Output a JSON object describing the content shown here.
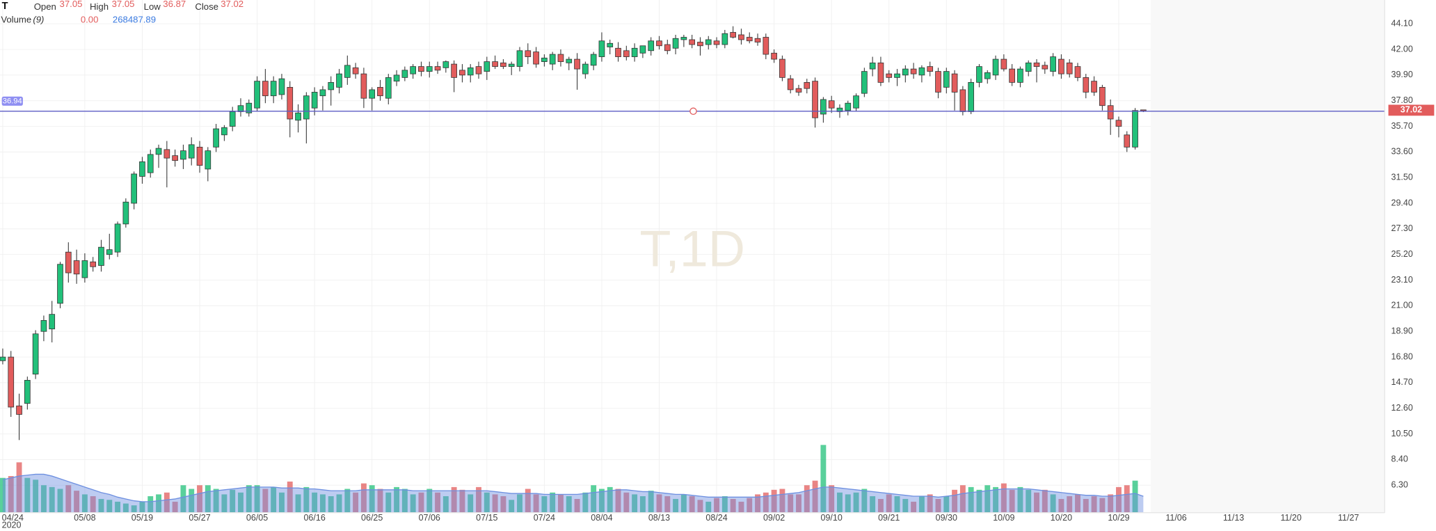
{
  "chart_data": {
    "type": "candlestick",
    "header": {
      "symbol": "T",
      "open": "Open",
      "high": "High",
      "low": "Low",
      "close": "Close",
      "volume": "Volume",
      "volume_period": "(9)",
      "volume_value": "0.00"
    },
    "watermark": "T,1D",
    "year_label": "2020",
    "categories": [
      "04/24",
      null,
      null,
      null,
      null,
      null,
      null,
      null,
      null,
      null,
      "05/08",
      null,
      null,
      null,
      null,
      null,
      null,
      "05/19",
      null,
      null,
      null,
      null,
      null,
      null,
      "05/27",
      null,
      null,
      null,
      null,
      null,
      null,
      "06/05",
      null,
      null,
      null,
      null,
      null,
      null,
      "06/16",
      null,
      null,
      null,
      null,
      null,
      null,
      "06/25",
      null,
      null,
      null,
      null,
      null,
      null,
      "07/06",
      null,
      null,
      null,
      null,
      null,
      null,
      "07/15",
      null,
      null,
      null,
      null,
      null,
      null,
      "07/24",
      null,
      null,
      null,
      null,
      null,
      null,
      "08/04",
      null,
      null,
      null,
      null,
      null,
      null,
      "08/13",
      null,
      null,
      null,
      null,
      null,
      null,
      "08/24",
      null,
      null,
      null,
      null,
      null,
      null,
      "09/02",
      null,
      null,
      null,
      null,
      null,
      null,
      "09/10",
      null,
      null,
      null,
      null,
      null,
      null,
      "09/21",
      null,
      null,
      null,
      null,
      null,
      null,
      "09/30",
      null,
      null,
      null,
      null,
      null,
      null,
      "10/09",
      null,
      null,
      null,
      null,
      null,
      null,
      "10/20",
      null,
      null,
      null,
      null,
      null,
      null,
      "10/29",
      null,
      null,
      null,
      null,
      null,
      null,
      "11/06",
      null,
      null,
      null,
      null,
      null,
      null,
      "11/13",
      null,
      null,
      null,
      null,
      null,
      null,
      "11/20",
      null,
      null,
      null,
      null,
      null,
      null,
      "11/27",
      null,
      null,
      null
    ],
    "open": [
      16.5,
      16.8,
      12.8,
      13.0,
      15.4,
      18.9,
      19.1,
      21.2,
      25.4,
      24.7,
      23.3,
      24.6,
      24.3,
      25.2,
      25.4,
      27.7,
      29.4,
      31.6,
      31.9,
      33.4,
      33.8,
      33.3,
      33.0,
      33.1,
      34.0,
      32.2,
      34.0,
      35.0,
      35.7,
      36.9,
      36.8,
      37.2,
      39.4,
      38.2,
      38.3,
      38.9,
      36.2,
      36.3,
      37.2,
      38.2,
      38.7,
      38.9,
      39.7,
      40.5,
      40.0,
      38.0,
      38.9,
      38.0,
      39.4,
      39.7,
      40.0,
      40.6,
      40.2,
      40.6,
      40.5,
      40.8,
      40.3,
      39.9,
      40.6,
      40.2,
      41.0,
      40.9,
      40.6,
      40.6,
      41.9,
      41.8,
      41.0,
      40.8,
      41.6,
      40.9,
      41.2,
      40.0,
      40.7,
      41.4,
      42.2,
      42.1,
      41.9,
      41.4,
      41.7,
      41.9,
      42.7,
      42.4,
      42.1,
      42.8,
      42.8,
      42.6,
      42.4,
      42.7,
      42.4,
      43.4,
      43.2,
      43.0,
      42.9,
      43.0,
      41.7,
      41.2,
      39.6,
      38.8,
      39.3,
      39.4,
      36.7,
      37.8,
      36.9,
      37.0,
      37.2,
      38.4,
      40.4,
      40.9,
      40.0,
      39.7,
      39.9,
      40.4,
      39.9,
      40.6,
      40.2,
      38.9,
      40.0,
      38.7,
      36.9,
      39.3,
      39.6,
      39.9,
      41.2,
      40.4,
      39.3,
      40.2,
      40.9,
      40.7,
      40.2,
      41.2,
      40.9,
      40.6,
      39.7,
      39.4,
      38.9,
      37.4,
      36.2,
      35.0,
      34.0,
      37.05,
      null,
      null,
      null,
      null,
      null,
      null,
      null,
      null,
      null,
      null,
      null,
      null,
      null,
      null,
      null,
      null,
      null,
      null,
      null,
      null,
      null,
      null,
      null,
      null,
      null,
      null,
      null,
      null
    ],
    "high": [
      17.5,
      17.3,
      13.8,
      15.2,
      19.0,
      20.2,
      21.4,
      24.6,
      26.2,
      25.6,
      25.3,
      25.0,
      26.4,
      26.9,
      27.9,
      29.8,
      32.0,
      33.2,
      33.8,
      34.2,
      34.5,
      33.8,
      34.2,
      34.8,
      34.5,
      34.0,
      35.9,
      35.8,
      37.3,
      38.0,
      37.9,
      39.8,
      40.4,
      39.8,
      40.0,
      39.4,
      37.5,
      38.5,
      38.9,
      39.0,
      39.8,
      40.4,
      41.5,
      40.9,
      40.5,
      38.9,
      39.5,
      40.0,
      40.3,
      40.6,
      40.8,
      41.0,
      41.0,
      41.0,
      41.1,
      41.1,
      40.8,
      40.8,
      41.0,
      41.4,
      41.5,
      41.2,
      41.0,
      42.2,
      42.5,
      42.2,
      41.6,
      41.8,
      42.0,
      41.4,
      41.7,
      41.0,
      41.8,
      43.4,
      42.8,
      42.6,
      42.3,
      42.5,
      42.3,
      43.0,
      43.1,
      42.8,
      43.2,
      43.2,
      43.2,
      43.0,
      43.1,
      43.0,
      43.6,
      43.9,
      43.7,
      43.4,
      43.3,
      43.3,
      42.0,
      41.5,
      39.9,
      39.1,
      39.6,
      39.7,
      38.1,
      38.2,
      37.5,
      37.8,
      38.4,
      40.5,
      41.4,
      41.4,
      40.3,
      40.4,
      40.7,
      40.9,
      40.7,
      41.0,
      40.5,
      40.5,
      40.3,
      39.0,
      39.6,
      40.8,
      40.3,
      41.5,
      41.6,
      40.8,
      40.6,
      41.1,
      41.2,
      41.0,
      41.7,
      41.6,
      41.2,
      40.9,
      40.0,
      39.8,
      39.1,
      37.9,
      36.5,
      35.3,
      37.2,
      37.05,
      null,
      null,
      null,
      null,
      null,
      null,
      null,
      null,
      null,
      null,
      null,
      null,
      null,
      null,
      null,
      null,
      null,
      null,
      null,
      null,
      null,
      null,
      null,
      null,
      null,
      null,
      null,
      null
    ],
    "low": [
      16.2,
      11.9,
      10.0,
      12.5,
      15.0,
      18.1,
      18.0,
      20.8,
      22.9,
      22.8,
      22.9,
      23.8,
      23.8,
      24.8,
      25.0,
      27.4,
      28.9,
      31.0,
      31.5,
      32.3,
      30.7,
      32.4,
      32.2,
      32.5,
      31.9,
      31.2,
      33.6,
      34.5,
      35.3,
      36.5,
      36.5,
      36.9,
      37.6,
      37.6,
      37.9,
      34.8,
      35.2,
      34.3,
      36.6,
      37.0,
      37.4,
      38.4,
      39.1,
      39.6,
      37.2,
      37.0,
      37.8,
      37.5,
      39.0,
      39.4,
      39.6,
      39.8,
      39.7,
      40.0,
      40.1,
      38.5,
      39.3,
      39.3,
      39.6,
      39.5,
      40.4,
      40.4,
      39.9,
      40.2,
      40.8,
      40.5,
      40.6,
      40.3,
      40.6,
      40.3,
      38.7,
      39.6,
      40.3,
      41.0,
      41.6,
      41.0,
      41.1,
      41.0,
      41.3,
      41.5,
      42.0,
      41.6,
      41.6,
      42.2,
      42.1,
      41.5,
      42.0,
      42.1,
      42.1,
      42.9,
      42.4,
      42.5,
      42.3,
      41.2,
      40.9,
      39.4,
      38.4,
      38.2,
      38.4,
      35.6,
      36.0,
      36.8,
      36.4,
      36.6,
      36.9,
      38.1,
      39.8,
      39.0,
      39.3,
      39.0,
      39.3,
      39.6,
      39.3,
      39.8,
      38.0,
      38.4,
      37.0,
      36.6,
      36.7,
      38.9,
      39.2,
      39.5,
      40.2,
      39.0,
      38.9,
      39.8,
      39.3,
      40.0,
      39.8,
      39.6,
      39.7,
      39.4,
      38.0,
      38.2,
      37.0,
      35.0,
      34.8,
      33.6,
      33.8,
      36.87,
      null,
      null,
      null,
      null,
      null,
      null,
      null,
      null,
      null,
      null,
      null,
      null,
      null,
      null,
      null,
      null,
      null,
      null,
      null,
      null,
      null,
      null,
      null,
      null,
      null,
      null,
      null,
      null
    ],
    "close": [
      16.8,
      12.7,
      12.1,
      14.9,
      18.7,
      19.8,
      20.3,
      24.4,
      23.7,
      23.6,
      24.7,
      24.2,
      25.8,
      25.6,
      27.7,
      29.5,
      31.8,
      32.8,
      33.4,
      33.9,
      33.1,
      32.9,
      33.7,
      34.2,
      32.5,
      33.7,
      35.5,
      35.6,
      36.9,
      37.4,
      37.6,
      39.4,
      38.2,
      39.4,
      39.6,
      36.3,
      36.8,
      38.2,
      38.5,
      38.7,
      39.3,
      40.0,
      40.7,
      40.0,
      38.0,
      38.7,
      38.2,
      39.7,
      39.9,
      40.3,
      40.6,
      40.2,
      40.6,
      40.3,
      41.0,
      39.7,
      39.9,
      40.5,
      40.0,
      41.0,
      40.6,
      40.6,
      40.8,
      41.9,
      41.4,
      40.8,
      41.3,
      41.6,
      41.0,
      41.2,
      40.4,
      40.8,
      41.6,
      42.7,
      42.5,
      41.4,
      41.4,
      42.1,
      42.3,
      42.7,
      42.3,
      41.9,
      42.9,
      43.0,
      42.4,
      42.3,
      42.8,
      42.4,
      43.3,
      43.0,
      42.8,
      42.7,
      42.6,
      41.6,
      41.2,
      39.7,
      38.7,
      38.5,
      38.8,
      36.4,
      37.9,
      37.2,
      37.2,
      37.6,
      38.2,
      40.2,
      40.9,
      39.3,
      39.7,
      40.0,
      40.4,
      40.0,
      40.5,
      40.2,
      38.5,
      40.2,
      38.5,
      36.9,
      39.3,
      40.6,
      40.1,
      41.2,
      40.4,
      39.3,
      40.4,
      40.9,
      40.6,
      40.4,
      41.4,
      40.0,
      40.0,
      39.7,
      38.5,
      38.5,
      37.4,
      36.3,
      35.7,
      34.0,
      37.0,
      37.02,
      null,
      null,
      null,
      null,
      null,
      null,
      null,
      null,
      null,
      null,
      null,
      null,
      null,
      null,
      null,
      null,
      null,
      null,
      null,
      null,
      null,
      null,
      null,
      null,
      null,
      null,
      null,
      null
    ],
    "volume": [
      570000,
      600000,
      825000,
      570000,
      540000,
      450000,
      420000,
      390000,
      450000,
      360000,
      300000,
      270000,
      225000,
      210000,
      180000,
      150000,
      120000,
      180000,
      270000,
      300000,
      330000,
      180000,
      450000,
      390000,
      450000,
      450000,
      390000,
      300000,
      375000,
      330000,
      450000,
      450000,
      390000,
      420000,
      330000,
      510000,
      300000,
      420000,
      330000,
      300000,
      270000,
      300000,
      390000,
      330000,
      480000,
      450000,
      390000,
      330000,
      420000,
      390000,
      300000,
      330000,
      390000,
      330000,
      270000,
      420000,
      375000,
      300000,
      420000,
      330000,
      300000,
      270000,
      210000,
      300000,
      390000,
      300000,
      270000,
      330000,
      300000,
      270000,
      225000,
      330000,
      450000,
      390000,
      420000,
      390000,
      330000,
      300000,
      270000,
      360000,
      300000,
      270000,
      225000,
      300000,
      270000,
      210000,
      180000,
      240000,
      270000,
      225000,
      180000,
      240000,
      300000,
      330000,
      375000,
      390000,
      300000,
      300000,
      450000,
      525000,
      1110000,
      450000,
      330000,
      300000,
      330000,
      390000,
      270000,
      225000,
      300000,
      270000,
      225000,
      180000,
      270000,
      300000,
      225000,
      270000,
      375000,
      450000,
      420000,
      375000,
      450000,
      420000,
      480000,
      375000,
      420000,
      375000,
      330000,
      375000,
      300000,
      225000,
      270000,
      300000,
      225000,
      270000,
      240000,
      300000,
      420000,
      450000,
      525000,
      0,
      null,
      null,
      null,
      null,
      null,
      null,
      null,
      null,
      null,
      null,
      null,
      null,
      null,
      null,
      null,
      null,
      null,
      null,
      null,
      null,
      null,
      null,
      null,
      null,
      null,
      null,
      null,
      null
    ],
    "volume_ma": [
      540000,
      570000,
      600000,
      615000,
      630000,
      630000,
      600000,
      555000,
      510000,
      465000,
      420000,
      375000,
      330000,
      300000,
      255000,
      225000,
      195000,
      180000,
      180000,
      195000,
      210000,
      225000,
      255000,
      285000,
      315000,
      345000,
      360000,
      375000,
      390000,
      405000,
      420000,
      420000,
      420000,
      420000,
      405000,
      405000,
      405000,
      390000,
      390000,
      375000,
      360000,
      360000,
      360000,
      360000,
      375000,
      375000,
      375000,
      375000,
      375000,
      375000,
      360000,
      360000,
      360000,
      360000,
      360000,
      360000,
      360000,
      360000,
      360000,
      360000,
      345000,
      330000,
      315000,
      315000,
      315000,
      315000,
      300000,
      300000,
      300000,
      300000,
      300000,
      315000,
      330000,
      345000,
      360000,
      375000,
      375000,
      360000,
      345000,
      345000,
      330000,
      315000,
      300000,
      300000,
      285000,
      270000,
      255000,
      255000,
      255000,
      255000,
      255000,
      255000,
      255000,
      270000,
      285000,
      300000,
      315000,
      330000,
      360000,
      390000,
      420000,
      420000,
      405000,
      390000,
      375000,
      360000,
      345000,
      330000,
      315000,
      300000,
      285000,
      270000,
      270000,
      270000,
      255000,
      270000,
      285000,
      315000,
      330000,
      345000,
      360000,
      375000,
      390000,
      390000,
      390000,
      390000,
      375000,
      360000,
      345000,
      330000,
      315000,
      300000,
      285000,
      285000,
      270000,
      270000,
      285000,
      300000,
      315000,
      268487.89,
      null,
      null,
      null,
      null,
      null,
      null,
      null,
      null,
      null,
      null,
      null,
      null,
      null,
      null,
      null,
      null,
      null,
      null,
      null,
      null,
      null,
      null,
      null,
      null,
      null,
      null,
      null,
      null
    ],
    "up_color": "#22c07a",
    "down_color": "#e25c5c",
    "volume_ma_color": "#6d8fe0",
    "hline": 36.94,
    "hline_color": "#5c5cc4",
    "ylim": [
      4.05,
      46.05
    ],
    "yticks": [
      {
        "value": 44.1,
        "label": "44.10"
      },
      {
        "value": 42,
        "label": "42.00"
      },
      {
        "value": 39.9,
        "label": "39.90"
      },
      {
        "value": 37.8,
        "label": "37.80"
      },
      {
        "value": 35.7,
        "label": "35.70"
      },
      {
        "value": 33.6,
        "label": "33.60"
      },
      {
        "value": 31.5,
        "label": "31.50"
      },
      {
        "value": 29.4,
        "label": "29.40"
      },
      {
        "value": 27.3,
        "label": "27.30"
      },
      {
        "value": 25.2,
        "label": "25.20"
      },
      {
        "value": 23.1,
        "label": "23.10"
      },
      {
        "value": 21,
        "label": "21.00"
      },
      {
        "value": 18.9,
        "label": "18.90"
      },
      {
        "value": 16.8,
        "label": "16.80"
      },
      {
        "value": 14.7,
        "label": "14.70"
      },
      {
        "value": 12.6,
        "label": "12.60"
      },
      {
        "value": 10.5,
        "label": "10.50"
      },
      {
        "value": 8.4,
        "label": "8.40"
      },
      {
        "value": 6.3,
        "label": "6.30"
      }
    ],
    "volume_ylim": [
      0,
      1500000
    ],
    "grid": true
  }
}
